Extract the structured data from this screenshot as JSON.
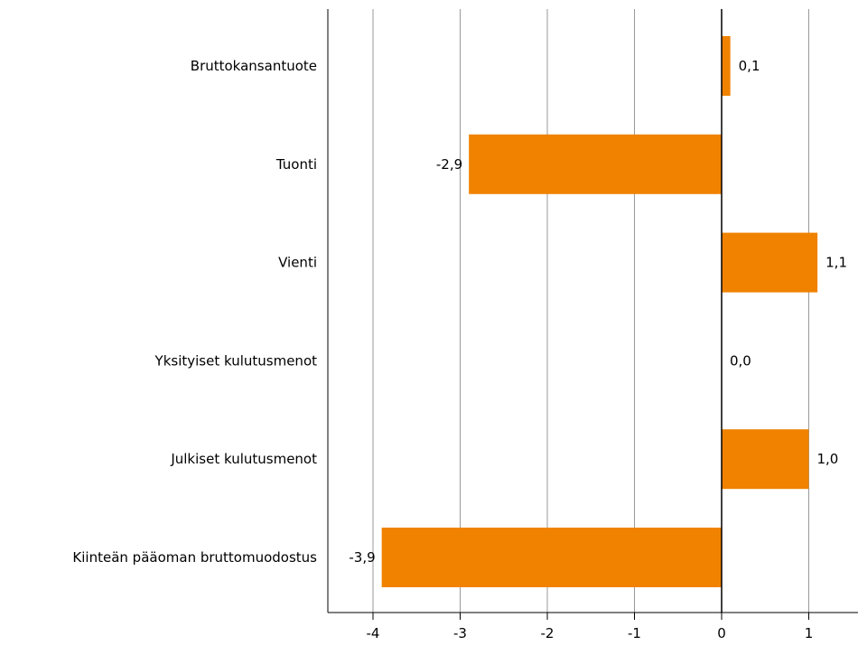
{
  "chart_data": {
    "type": "bar",
    "orientation": "horizontal",
    "categories": [
      "Bruttokansantuote",
      "Tuonti",
      "Vienti",
      "Yksityiset kulutusmenot",
      "Julkiset kulutusmenot",
      "Kiinteän pääoman bruttomuodostus"
    ],
    "values": [
      0.1,
      -2.9,
      1.1,
      0.0,
      1.0,
      -3.9
    ],
    "value_labels": [
      "0,1",
      "-2,9",
      "1,1",
      "0,0",
      "1,0",
      "-3,9"
    ],
    "xticks": [
      -4,
      -3,
      -2,
      -1,
      0,
      1
    ],
    "xtick_labels": [
      "-4",
      "-3",
      "-2",
      "-1",
      "0",
      "1"
    ],
    "xlim": [
      -4.5,
      1.5
    ],
    "grid": "vertical",
    "legend": "none",
    "title": "",
    "xlabel": "",
    "ylabel": "",
    "colors": {
      "bar": "#F08200",
      "grid": "#999999",
      "axis": "#000000"
    }
  }
}
